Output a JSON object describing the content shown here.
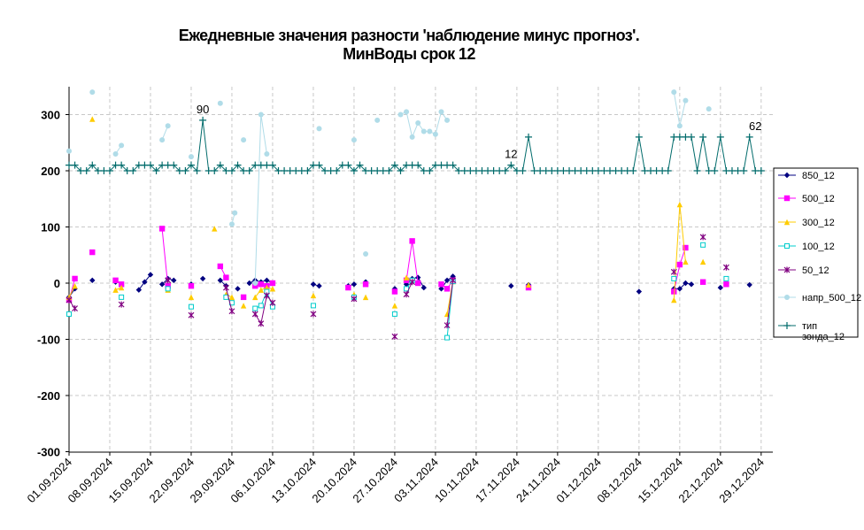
{
  "chart_data": {
    "type": "line",
    "title_line1": "Ежедневные значения разности 'наблюдение минус прогноз'.",
    "title_line2": "МинВоды    срок 12",
    "x_labels": [
      "01.09.2024",
      "08.09.2024",
      "15.09.2024",
      "22.09.2024",
      "29.09.2024",
      "06.10.2024",
      "13.10.2024",
      "20.10.2024",
      "27.10.2024",
      "03.11.2024",
      "10.11.2024",
      "17.11.2024",
      "24.11.2024",
      "01.12.2024",
      "08.12.2024",
      "15.12.2024",
      "22.12.2024",
      "29.12.2024"
    ],
    "x_range_days": [
      0,
      121
    ],
    "y_ticks": [
      "300",
      "200",
      "100",
      "0",
      "-100",
      "-200",
      "-300"
    ],
    "ylim": [
      -300,
      350
    ],
    "grid": true,
    "legend_position": "right",
    "annotations": [
      {
        "x": 23,
        "y": 290,
        "text": "90"
      },
      {
        "x": 76,
        "y": 210,
        "text": "12"
      },
      {
        "x": 118,
        "y": 260,
        "text": "62"
      }
    ],
    "series": [
      {
        "name": "850_12",
        "color": "#000080",
        "marker": "diamond",
        "connect": true,
        "points": [
          [
            0,
            -25
          ],
          [
            1,
            -10
          ],
          [
            4,
            5
          ],
          [
            8,
            2
          ],
          [
            12,
            -12
          ],
          [
            13,
            2
          ],
          [
            14,
            15
          ],
          [
            16,
            -2
          ],
          [
            17,
            8
          ],
          [
            18,
            5
          ],
          [
            21,
            -2
          ],
          [
            23,
            8
          ],
          [
            26,
            5
          ],
          [
            27,
            -5
          ],
          [
            29,
            -10
          ],
          [
            31,
            0
          ],
          [
            32,
            5
          ],
          [
            33,
            2
          ],
          [
            34,
            5
          ],
          [
            35,
            0
          ],
          [
            42,
            -2
          ],
          [
            43,
            -5
          ],
          [
            48,
            -5
          ],
          [
            49,
            -2
          ],
          [
            51,
            2
          ],
          [
            56,
            -10
          ],
          [
            58,
            -2
          ],
          [
            59,
            8
          ],
          [
            60,
            10
          ],
          [
            61,
            -8
          ],
          [
            64,
            -10
          ],
          [
            65,
            5
          ],
          [
            66,
            12
          ],
          [
            76,
            -5
          ],
          [
            79,
            -3
          ],
          [
            98,
            -15
          ],
          [
            104,
            -10
          ],
          [
            105,
            -10
          ],
          [
            106,
            0
          ],
          [
            107,
            -2
          ],
          [
            112,
            -8
          ],
          [
            117,
            -3
          ]
        ]
      },
      {
        "name": "500_12",
        "color": "#ff00ff",
        "marker": "square",
        "connect": true,
        "points": [
          [
            0,
            -30
          ],
          [
            1,
            8
          ],
          [
            4,
            55
          ],
          [
            8,
            5
          ],
          [
            9,
            -2
          ],
          [
            16,
            97
          ],
          [
            17,
            -5
          ],
          [
            21,
            -5
          ],
          [
            26,
            30
          ],
          [
            27,
            10
          ],
          [
            30,
            -25
          ],
          [
            32,
            -5
          ],
          [
            33,
            -2
          ],
          [
            34,
            -5
          ],
          [
            35,
            0
          ],
          [
            48,
            -8
          ],
          [
            51,
            -2
          ],
          [
            56,
            -15
          ],
          [
            58,
            5
          ],
          [
            59,
            75
          ],
          [
            60,
            0
          ],
          [
            64,
            -2
          ],
          [
            65,
            -10
          ],
          [
            66,
            5
          ],
          [
            79,
            -8
          ],
          [
            104,
            -15
          ],
          [
            105,
            33
          ],
          [
            106,
            63
          ],
          [
            109,
            2
          ],
          [
            113,
            -2
          ]
        ]
      },
      {
        "name": "300_12",
        "color": "#ffcc00",
        "marker": "triangle",
        "connect": true,
        "points": [
          [
            0,
            -25
          ],
          [
            1,
            -5
          ],
          [
            4,
            292
          ],
          [
            8,
            -12
          ],
          [
            9,
            -8
          ],
          [
            17,
            -12
          ],
          [
            21,
            -25
          ],
          [
            25,
            97
          ],
          [
            27,
            -20
          ],
          [
            28,
            -25
          ],
          [
            30,
            -40
          ],
          [
            32,
            -25
          ],
          [
            33,
            -12
          ],
          [
            34,
            -8
          ],
          [
            35,
            -10
          ],
          [
            42,
            -22
          ],
          [
            49,
            -20
          ],
          [
            51,
            -25
          ],
          [
            56,
            -40
          ],
          [
            58,
            10
          ],
          [
            59,
            5
          ],
          [
            65,
            -55
          ],
          [
            66,
            3
          ],
          [
            79,
            -3
          ],
          [
            104,
            -30
          ],
          [
            105,
            140
          ],
          [
            106,
            38
          ],
          [
            109,
            38
          ]
        ]
      },
      {
        "name": "100_12",
        "color": "#00cccc",
        "marker": "square-open",
        "connect": true,
        "points": [
          [
            0,
            -55
          ],
          [
            9,
            -25
          ],
          [
            17,
            -10
          ],
          [
            21,
            -42
          ],
          [
            27,
            -25
          ],
          [
            28,
            -35
          ],
          [
            32,
            -45
          ],
          [
            33,
            -40
          ],
          [
            34,
            -15
          ],
          [
            35,
            -42
          ],
          [
            42,
            -40
          ],
          [
            49,
            -25
          ],
          [
            56,
            -55
          ],
          [
            58,
            -10
          ],
          [
            59,
            5
          ],
          [
            65,
            -97
          ],
          [
            66,
            3
          ],
          [
            104,
            8
          ],
          [
            109,
            68
          ],
          [
            113,
            8
          ]
        ]
      },
      {
        "name": "50_12",
        "color": "#800080",
        "marker": "star",
        "connect": true,
        "points": [
          [
            0,
            -30
          ],
          [
            1,
            -45
          ],
          [
            9,
            -38
          ],
          [
            17,
            5
          ],
          [
            21,
            -57
          ],
          [
            27,
            -8
          ],
          [
            28,
            -50
          ],
          [
            32,
            -55
          ],
          [
            33,
            -72
          ],
          [
            34,
            -22
          ],
          [
            35,
            -35
          ],
          [
            42,
            -55
          ],
          [
            49,
            -28
          ],
          [
            56,
            -95
          ],
          [
            58,
            -20
          ],
          [
            59,
            2
          ],
          [
            65,
            -75
          ],
          [
            66,
            5
          ],
          [
            104,
            20
          ],
          [
            109,
            82
          ],
          [
            113,
            28
          ]
        ]
      },
      {
        "name": "напр_500_12",
        "color": "#b0dce8",
        "marker": "circle",
        "connect": true,
        "points": [
          [
            0,
            235
          ],
          [
            4,
            340
          ],
          [
            8,
            230
          ],
          [
            9,
            245
          ],
          [
            16,
            255
          ],
          [
            17,
            280
          ],
          [
            21,
            225
          ],
          [
            26,
            320
          ],
          [
            28,
            105
          ],
          [
            28.5,
            125
          ],
          [
            30,
            255
          ],
          [
            32,
            0
          ],
          [
            33,
            300
          ],
          [
            34,
            230
          ],
          [
            43,
            275
          ],
          [
            49,
            255
          ],
          [
            51,
            52
          ],
          [
            53,
            290
          ],
          [
            57,
            300
          ],
          [
            58,
            305
          ],
          [
            59,
            260
          ],
          [
            60,
            285
          ],
          [
            61,
            270
          ],
          [
            62,
            270
          ],
          [
            63,
            265
          ],
          [
            64,
            305
          ],
          [
            65,
            290
          ],
          [
            104,
            340
          ],
          [
            105,
            280
          ],
          [
            106,
            325
          ],
          [
            110,
            310
          ]
        ]
      },
      {
        "name": "тип\nзонда_12",
        "color": "#006b6b",
        "marker": "plus",
        "connect": true,
        "points": [
          [
            0,
            210
          ],
          [
            1,
            210
          ],
          [
            2,
            200
          ],
          [
            3,
            200
          ],
          [
            4,
            210
          ],
          [
            5,
            200
          ],
          [
            6,
            200
          ],
          [
            7,
            200
          ],
          [
            8,
            210
          ],
          [
            9,
            210
          ],
          [
            10,
            200
          ],
          [
            11,
            200
          ],
          [
            12,
            210
          ],
          [
            13,
            210
          ],
          [
            14,
            210
          ],
          [
            15,
            200
          ],
          [
            16,
            210
          ],
          [
            17,
            210
          ],
          [
            18,
            210
          ],
          [
            19,
            200
          ],
          [
            20,
            200
          ],
          [
            21,
            210
          ],
          [
            22,
            200
          ],
          [
            23,
            290
          ],
          [
            24,
            200
          ],
          [
            25,
            200
          ],
          [
            26,
            210
          ],
          [
            27,
            200
          ],
          [
            28,
            200
          ],
          [
            29,
            210
          ],
          [
            30,
            200
          ],
          [
            31,
            200
          ],
          [
            32,
            210
          ],
          [
            33,
            210
          ],
          [
            34,
            210
          ],
          [
            35,
            210
          ],
          [
            36,
            200
          ],
          [
            37,
            200
          ],
          [
            38,
            200
          ],
          [
            39,
            200
          ],
          [
            40,
            200
          ],
          [
            41,
            200
          ],
          [
            42,
            210
          ],
          [
            43,
            210
          ],
          [
            44,
            200
          ],
          [
            45,
            200
          ],
          [
            46,
            200
          ],
          [
            47,
            210
          ],
          [
            48,
            210
          ],
          [
            49,
            200
          ],
          [
            50,
            210
          ],
          [
            51,
            200
          ],
          [
            52,
            200
          ],
          [
            53,
            200
          ],
          [
            54,
            200
          ],
          [
            55,
            200
          ],
          [
            56,
            210
          ],
          [
            57,
            200
          ],
          [
            58,
            210
          ],
          [
            59,
            210
          ],
          [
            60,
            210
          ],
          [
            61,
            200
          ],
          [
            62,
            200
          ],
          [
            63,
            210
          ],
          [
            64,
            210
          ],
          [
            65,
            210
          ],
          [
            66,
            210
          ],
          [
            67,
            200
          ],
          [
            68,
            200
          ],
          [
            69,
            200
          ],
          [
            70,
            200
          ],
          [
            71,
            200
          ],
          [
            72,
            200
          ],
          [
            73,
            200
          ],
          [
            74,
            200
          ],
          [
            75,
            200
          ],
          [
            76,
            210
          ],
          [
            77,
            200
          ],
          [
            78,
            200
          ],
          [
            79,
            260
          ],
          [
            80,
            200
          ],
          [
            81,
            200
          ],
          [
            82,
            200
          ],
          [
            83,
            200
          ],
          [
            84,
            200
          ],
          [
            85,
            200
          ],
          [
            86,
            200
          ],
          [
            87,
            200
          ],
          [
            88,
            200
          ],
          [
            89,
            200
          ],
          [
            90,
            200
          ],
          [
            91,
            200
          ],
          [
            92,
            200
          ],
          [
            93,
            200
          ],
          [
            94,
            200
          ],
          [
            95,
            200
          ],
          [
            96,
            200
          ],
          [
            97,
            200
          ],
          [
            98,
            260
          ],
          [
            99,
            200
          ],
          [
            100,
            200
          ],
          [
            101,
            200
          ],
          [
            102,
            200
          ],
          [
            103,
            200
          ],
          [
            104,
            260
          ],
          [
            105,
            260
          ],
          [
            106,
            260
          ],
          [
            107,
            260
          ],
          [
            108,
            200
          ],
          [
            109,
            260
          ],
          [
            110,
            200
          ],
          [
            111,
            200
          ],
          [
            112,
            260
          ],
          [
            113,
            200
          ],
          [
            114,
            200
          ],
          [
            115,
            200
          ],
          [
            116,
            200
          ],
          [
            117,
            260
          ],
          [
            118,
            200
          ],
          [
            119,
            200
          ]
        ]
      }
    ]
  }
}
